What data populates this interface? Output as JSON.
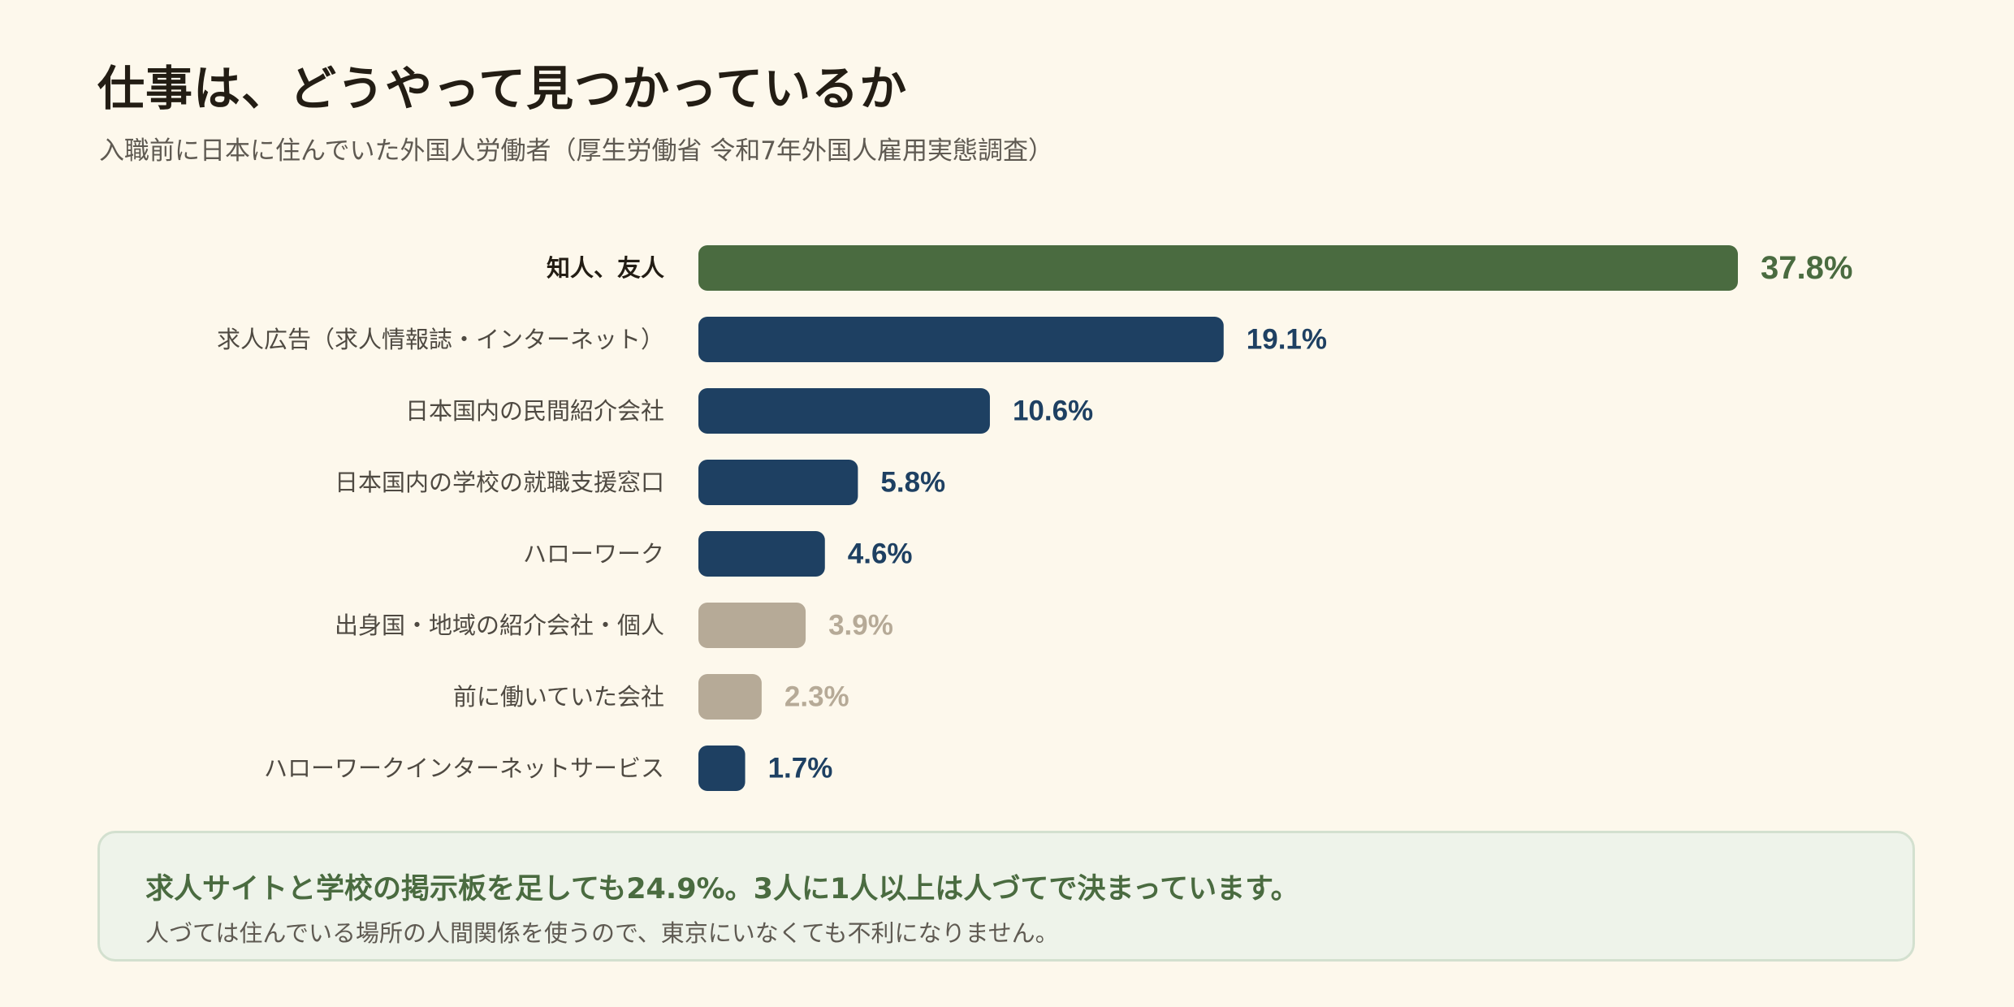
{
  "header": {
    "title": "仕事は、どうやって見つかっているか",
    "subtitle": "入職前に日本に住んでいた外国人労働者（厚生労働省 令和7年外国人雇用実態調査）"
  },
  "colors": {
    "highlight": "#4a6b40",
    "primary": "#1e4062",
    "muted": "#b6aa97",
    "background": "#fdf8ec"
  },
  "chart_data": {
    "type": "bar",
    "orientation": "horizontal",
    "unit": "%",
    "categories": [
      "知人、友人",
      "求人広告（求人情報誌・インターネット）",
      "日本国内の民間紹介会社",
      "日本国内の学校の就職支援窓口",
      "ハローワーク",
      "出身国・地域の紹介会社・個人",
      "前に働いていた会社",
      "ハローワークインターネットサービス"
    ],
    "values": [
      37.8,
      19.1,
      10.6,
      5.8,
      4.6,
      3.9,
      2.3,
      1.7
    ],
    "value_labels": [
      "37.8%",
      "19.1%",
      "10.6%",
      "5.8%",
      "4.6%",
      "3.9%",
      "2.3%",
      "1.7%"
    ],
    "bar_colors": [
      "#4a6b40",
      "#1e4062",
      "#1e4062",
      "#1e4062",
      "#1e4062",
      "#b6aa97",
      "#b6aa97",
      "#1e4062"
    ],
    "highlight_index": 0,
    "xlim": [
      0,
      37.8
    ],
    "grid": false,
    "legend": "none"
  },
  "callout": {
    "main": "求人サイトと学校の掲示板を足しても24.9%。3人に1人以上は人づてで決まっています。",
    "sub": "人づては住んでいる場所の人間関係を使うので、東京にいなくても不利になりません。"
  }
}
